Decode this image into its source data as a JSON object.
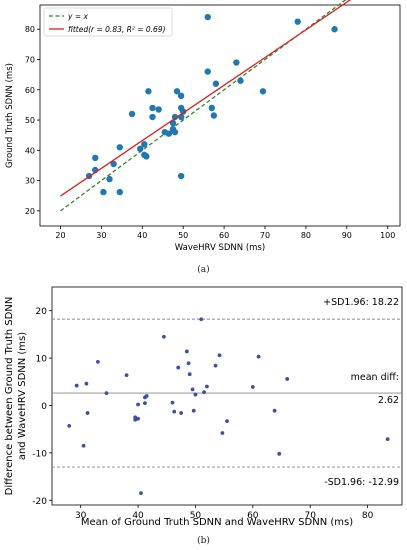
{
  "captions": {
    "a": "(a)",
    "b": "(b)"
  },
  "chart_data": [
    {
      "type": "scatter",
      "panel": "a",
      "xlabel": "WaveHRV SDNN (ms)",
      "ylabel": "Ground Truth SDNN (ms)",
      "xlim": [
        15,
        103
      ],
      "ylim": [
        15,
        88
      ],
      "xticks": [
        20,
        30,
        40,
        50,
        60,
        70,
        80,
        90,
        100
      ],
      "yticks": [
        20,
        30,
        40,
        50,
        60,
        70,
        80
      ],
      "grid": false,
      "legend_position": "top-left",
      "legend": [
        {
          "label": "y = x",
          "style": "dashed",
          "color": "#2a8a2a"
        },
        {
          "label": "fitted(r = 0.83, R² = 0.69)",
          "style": "solid",
          "color": "#e01e1e"
        }
      ],
      "identity_line": {
        "from": 20,
        "to": 100
      },
      "fit_line": {
        "slope": 0.915,
        "intercept": 6.6,
        "from": 20,
        "to": 100
      },
      "point_color": "#1f77b4",
      "points": [
        [
          27,
          31.5
        ],
        [
          28.5,
          33.5
        ],
        [
          28.5,
          37.5
        ],
        [
          30.5,
          26.2
        ],
        [
          32,
          30.5
        ],
        [
          33,
          35.5
        ],
        [
          34.5,
          41
        ],
        [
          34.5,
          26.2
        ],
        [
          37.5,
          52
        ],
        [
          39.5,
          40.5
        ],
        [
          40.5,
          42
        ],
        [
          40.5,
          38.5
        ],
        [
          41,
          38
        ],
        [
          41.5,
          59.5
        ],
        [
          42.5,
          54
        ],
        [
          42.5,
          51
        ],
        [
          44,
          53.5
        ],
        [
          45.5,
          46
        ],
        [
          46.5,
          45.5
        ],
        [
          47.5,
          49
        ],
        [
          47.5,
          47
        ],
        [
          48,
          51
        ],
        [
          48,
          46
        ],
        [
          48.5,
          59.5
        ],
        [
          49.5,
          58
        ],
        [
          49.5,
          54
        ],
        [
          49.5,
          51
        ],
        [
          49.5,
          31.5
        ],
        [
          50,
          52.8
        ],
        [
          56,
          84
        ],
        [
          56,
          66
        ],
        [
          57,
          54
        ],
        [
          57.5,
          51.5
        ],
        [
          58,
          62
        ],
        [
          63,
          69
        ],
        [
          64,
          63
        ],
        [
          69.5,
          59.5
        ],
        [
          78,
          82.5
        ],
        [
          87,
          80
        ]
      ]
    },
    {
      "type": "scatter",
      "panel": "b",
      "xlabel": "Mean of Ground Truth SDNN and WaveHRV SDNN (ms)",
      "ylabel": "Difference between Ground Truth SDNN\nand WaveHRV SDNN (ms)",
      "xlim": [
        25,
        86
      ],
      "ylim": [
        -21,
        25
      ],
      "xticks": [
        30,
        40,
        50,
        60,
        70,
        80
      ],
      "yticks": [
        -20,
        -10,
        0,
        10,
        20
      ],
      "grid": false,
      "point_color": "#3d4fa8",
      "reference_lines": [
        {
          "value": 18.22,
          "style": "dashed",
          "label": "+SD1.96: 18.22"
        },
        {
          "value": 2.62,
          "style": "solid",
          "label_line1": "mean diff:",
          "label_line2": "2.62"
        },
        {
          "value": -12.99,
          "style": "dashed",
          "label": "-SD1.96: -12.99"
        }
      ],
      "points": [
        [
          28,
          -4.3
        ],
        [
          29.3,
          4.2
        ],
        [
          30.5,
          -8.5
        ],
        [
          31,
          4.6
        ],
        [
          31.2,
          -1.6
        ],
        [
          33,
          9.2
        ],
        [
          34.5,
          2.6
        ],
        [
          38,
          6.4
        ],
        [
          39.5,
          -2.5
        ],
        [
          39.5,
          -3
        ],
        [
          40,
          0.2
        ],
        [
          40,
          -2.8
        ],
        [
          40.5,
          -18.5
        ],
        [
          41.2,
          1.7
        ],
        [
          41.2,
          0.5
        ],
        [
          41.5,
          2
        ],
        [
          44.5,
          14.5
        ],
        [
          46,
          0.6
        ],
        [
          46.3,
          -1.3
        ],
        [
          47,
          8
        ],
        [
          47.5,
          -1.6
        ],
        [
          48.5,
          11.4
        ],
        [
          48.8,
          8.9
        ],
        [
          49,
          6.6
        ],
        [
          49.5,
          3.4
        ],
        [
          49.7,
          -1.1
        ],
        [
          50,
          2.3
        ],
        [
          51,
          18.2
        ],
        [
          51.5,
          2.8
        ],
        [
          52,
          4
        ],
        [
          53.5,
          8.4
        ],
        [
          54.2,
          10.6
        ],
        [
          54.7,
          -5.8
        ],
        [
          55.5,
          -3.3
        ],
        [
          60,
          3.9
        ],
        [
          61,
          10.3
        ],
        [
          63.8,
          -1.1
        ],
        [
          64.6,
          -10.2
        ],
        [
          66,
          5.6
        ],
        [
          83.5,
          -7.1
        ]
      ]
    }
  ]
}
